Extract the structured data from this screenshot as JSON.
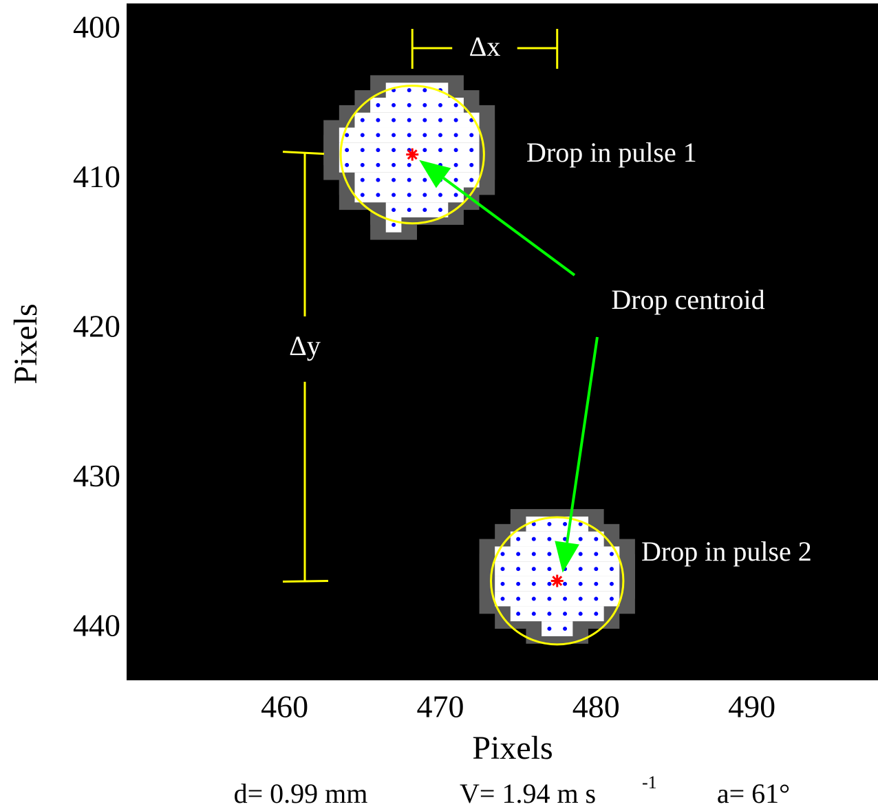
{
  "chart_data": {
    "type": "image",
    "x_label": "Pixels",
    "y_label": "Pixels",
    "xlim": [
      449.9,
      498.1
    ],
    "ylim": [
      398.2,
      443.4
    ],
    "y_reversed": true,
    "xticks": [
      460,
      470,
      480,
      490
    ],
    "yticks": [
      400,
      410,
      420,
      430,
      440
    ],
    "dot_color": "#0000ff",
    "circle_color": "#ffff00",
    "centroid_color": "#ff0000",
    "arrow_color": "#00ff00",
    "annotation_color": "#ffff00",
    "drops": [
      {
        "name": "Drop in pulse 1",
        "centroid": [
          468.2,
          408.3
        ],
        "circle_radius": 4.6,
        "rows": [
          {
            "y": 404,
            "x": [
              467,
              470
            ]
          },
          {
            "y": 405,
            "x": [
              466,
              471
            ]
          },
          {
            "y": 406,
            "x": [
              465,
              472
            ]
          },
          {
            "y": 407,
            "x": [
              464,
              472
            ]
          },
          {
            "y": 408,
            "x": [
              464,
              472
            ]
          },
          {
            "y": 409,
            "x": [
              464,
              472
            ]
          },
          {
            "y": 410,
            "x": [
              465,
              472
            ]
          },
          {
            "y": 411,
            "x": [
              465,
              471
            ]
          },
          {
            "y": 412,
            "x": [
              467,
              470
            ]
          },
          {
            "y": 413,
            "x": [
              467,
              467
            ]
          }
        ]
      },
      {
        "name": "Drop in pulse 2",
        "centroid": [
          477.5,
          436.8
        ],
        "circle_radius": 4.25,
        "rows": [
          {
            "y": 433,
            "x": [
              476,
              479
            ]
          },
          {
            "y": 434,
            "x": [
              475,
              480
            ]
          },
          {
            "y": 435,
            "x": [
              474,
              481
            ]
          },
          {
            "y": 436,
            "x": [
              474,
              481
            ]
          },
          {
            "y": 437,
            "x": [
              474,
              481
            ]
          },
          {
            "y": 438,
            "x": [
              474,
              481
            ]
          },
          {
            "y": 439,
            "x": [
              475,
              480
            ]
          },
          {
            "y": 440,
            "x": [
              477,
              478
            ]
          }
        ]
      }
    ],
    "delta_x_label": "Δx",
    "delta_y_label": "Δy",
    "centroid_label": "Drop centroid",
    "footer": {
      "d": "d= 0.99 mm",
      "v": "V= 1.94 m s",
      "v_exp": "-1",
      "a": "a= 61°"
    }
  }
}
